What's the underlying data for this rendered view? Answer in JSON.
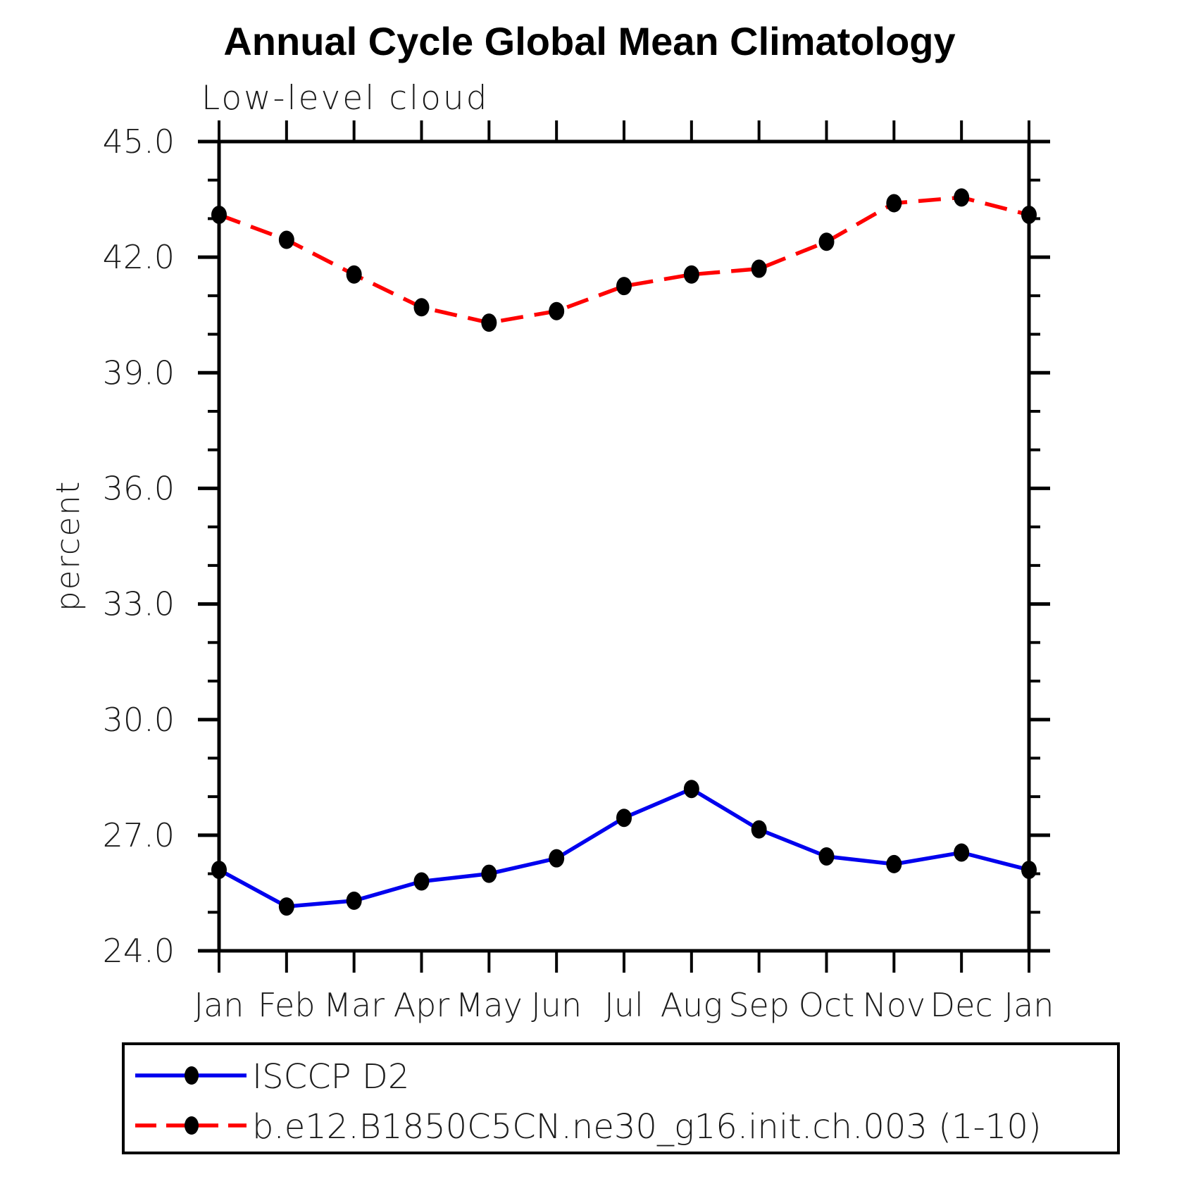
{
  "page": {
    "background": "#ffffff"
  },
  "header": {
    "title": "Annual Cycle Global Mean Climatology",
    "subtitle": "Low-level cloud"
  },
  "chart_data": {
    "type": "line",
    "title": "Annual Cycle Global Mean Climatology",
    "subtitle": "Low-level cloud",
    "xlabel": "",
    "ylabel": "percent",
    "categories": [
      "Jan",
      "Feb",
      "Mar",
      "Apr",
      "May",
      "Jun",
      "Jul",
      "Aug",
      "Sep",
      "Oct",
      "Nov",
      "Dec",
      "Jan"
    ],
    "ylim": [
      24.0,
      45.0
    ],
    "ytick_major_step": 3.0,
    "ytick_minor_step": 1.0,
    "ytick_labels": [
      "24.0",
      "27.0",
      "30.0",
      "33.0",
      "36.0",
      "39.0",
      "42.0",
      "45.0"
    ],
    "grid": false,
    "frame": "box-with-outward-ticks",
    "legend_position": "bottom-left-box",
    "axis_color": "#000000",
    "marker_color": "#000000",
    "series": [
      {
        "name": "ISCCP D2",
        "color": "#0000ee",
        "style": "solid",
        "marker": "filled-circle",
        "values": [
          26.1,
          25.15,
          25.3,
          25.8,
          26.0,
          26.4,
          27.45,
          28.2,
          27.15,
          26.45,
          26.25,
          26.55,
          26.1
        ]
      },
      {
        "name": "b.e12.B1850C5CN.ne30_g16.init.ch.003 (1-10)",
        "color": "#ff0000",
        "style": "dashed",
        "marker": "filled-circle",
        "values": [
          43.1,
          42.45,
          41.55,
          40.7,
          40.3,
          40.6,
          41.25,
          41.55,
          41.7,
          42.4,
          43.4,
          43.55,
          43.1
        ]
      }
    ]
  }
}
